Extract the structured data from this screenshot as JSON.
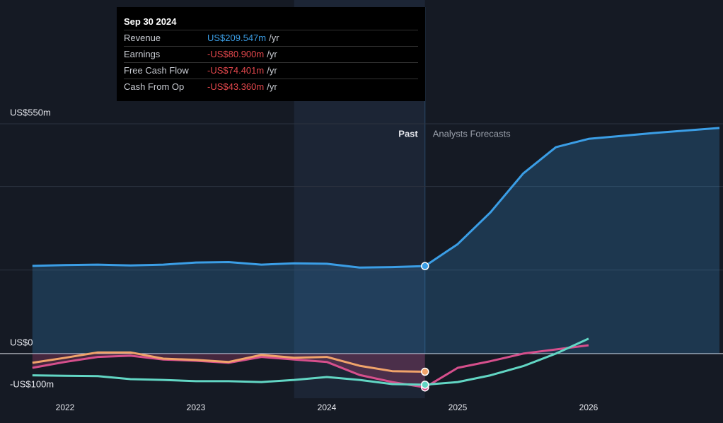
{
  "chart_data": {
    "type": "line",
    "x": [
      2021.75,
      2022.0,
      2022.25,
      2022.5,
      2022.75,
      2023.0,
      2023.25,
      2023.5,
      2023.75,
      2024.0,
      2024.25,
      2024.5,
      2024.75,
      2025.0,
      2025.25,
      2025.5,
      2025.75,
      2026.0,
      2026.5,
      2027.0
    ],
    "xlim": [
      2021.5,
      2027.03
    ],
    "xticks": [
      2022,
      2023,
      2024,
      2025,
      2026
    ],
    "ylim": [
      -100,
      550
    ],
    "yticks": [
      {
        "value": 550,
        "label": "US$550m"
      },
      {
        "value": 400,
        "label": null
      },
      {
        "value": 200,
        "label": null
      },
      {
        "value": 0,
        "label": "US$0"
      },
      {
        "value": -100,
        "label": "-US$100m"
      }
    ],
    "grid": true,
    "past_label": "Past",
    "forecast_label": "Analysts Forecasts",
    "series": [
      {
        "name": "Revenue",
        "color": "#3b9ee6",
        "values": [
          210,
          212,
          213,
          211,
          213,
          218,
          219,
          213,
          216,
          215,
          206,
          207,
          209.547,
          262,
          338,
          431,
          494,
          514,
          528,
          540
        ]
      },
      {
        "name": "Earnings",
        "color": "#d64f8c",
        "values": [
          -34,
          -20,
          -8,
          -5,
          -14,
          -17,
          -22,
          -8,
          -14,
          -20,
          -51,
          -68,
          -80.9,
          -34,
          -18,
          0,
          10,
          20,
          null,
          null
        ]
      },
      {
        "name": "Free Cash Flow",
        "color": "#62d6c4",
        "values": [
          -52,
          -53,
          -54,
          -61,
          -63,
          -66,
          -66,
          -68,
          -63,
          -56,
          -63,
          -73,
          -74.401,
          -68,
          -52,
          -30,
          0,
          36,
          null,
          null
        ]
      },
      {
        "name": "Cash From Op",
        "color": "#f0a36a",
        "values": [
          -22,
          -10,
          3,
          3,
          -12,
          -15,
          -20,
          -3,
          -10,
          -8,
          -29,
          -42,
          -43.36,
          null,
          null,
          null,
          null,
          null,
          null,
          null
        ]
      }
    ],
    "tooltip": {
      "date": "Sep 30 2024",
      "rows": [
        {
          "label": "Revenue",
          "value": "US$209.547m",
          "unit": "/yr",
          "color": "#3b9ee6"
        },
        {
          "label": "Earnings",
          "value": "-US$80.900m",
          "unit": "/yr",
          "color": "#e5484d"
        },
        {
          "label": "Free Cash Flow",
          "value": "-US$74.401m",
          "unit": "/yr",
          "color": "#e5484d"
        },
        {
          "label": "Cash From Op",
          "value": "-US$43.360m",
          "unit": "/yr",
          "color": "#e5484d"
        }
      ]
    }
  }
}
